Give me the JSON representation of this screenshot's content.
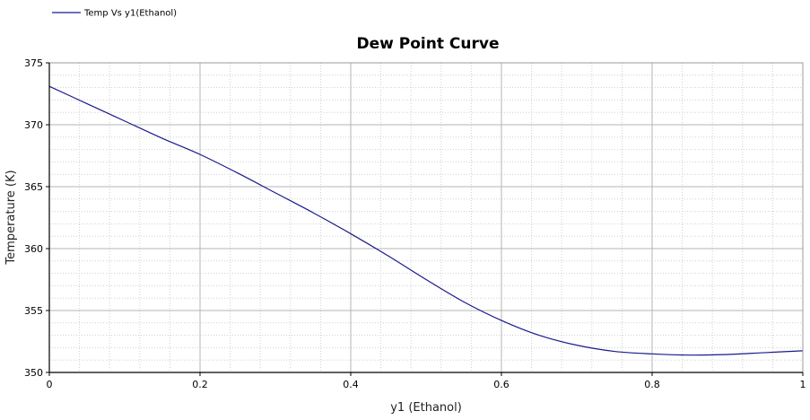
{
  "chart_data": {
    "type": "line",
    "title": "Dew Point Curve",
    "xlabel": "y1 (Ethanol)",
    "ylabel": "Temperature (K)",
    "xlim": [
      0,
      1
    ],
    "ylim": [
      350,
      375
    ],
    "xticks": [
      0,
      0.2,
      0.4,
      0.6,
      0.8,
      1
    ],
    "yticks": [
      350,
      355,
      360,
      365,
      370,
      375
    ],
    "xtick_labels": [
      "0",
      "0.2",
      "0.4",
      "0.6",
      "0.8",
      "1"
    ],
    "ytick_labels": [
      "350",
      "355",
      "360",
      "365",
      "370",
      "375"
    ],
    "grid": true,
    "minor_grid": true,
    "legend": "top-left",
    "series": [
      {
        "name": "Temp Vs y1(Ethanol)",
        "color": "#1a1a8c",
        "x": [
          0,
          0.05,
          0.1,
          0.15,
          0.2,
          0.25,
          0.3,
          0.35,
          0.4,
          0.45,
          0.5,
          0.55,
          0.6,
          0.65,
          0.7,
          0.75,
          0.8,
          0.85,
          0.9,
          0.95,
          1.0
        ],
        "y": [
          373.1,
          371.7,
          370.3,
          368.9,
          367.6,
          366.1,
          364.5,
          362.9,
          361.2,
          359.4,
          357.5,
          355.7,
          354.2,
          353.0,
          352.2,
          351.7,
          351.5,
          351.4,
          351.45,
          351.6,
          351.75
        ]
      }
    ]
  }
}
